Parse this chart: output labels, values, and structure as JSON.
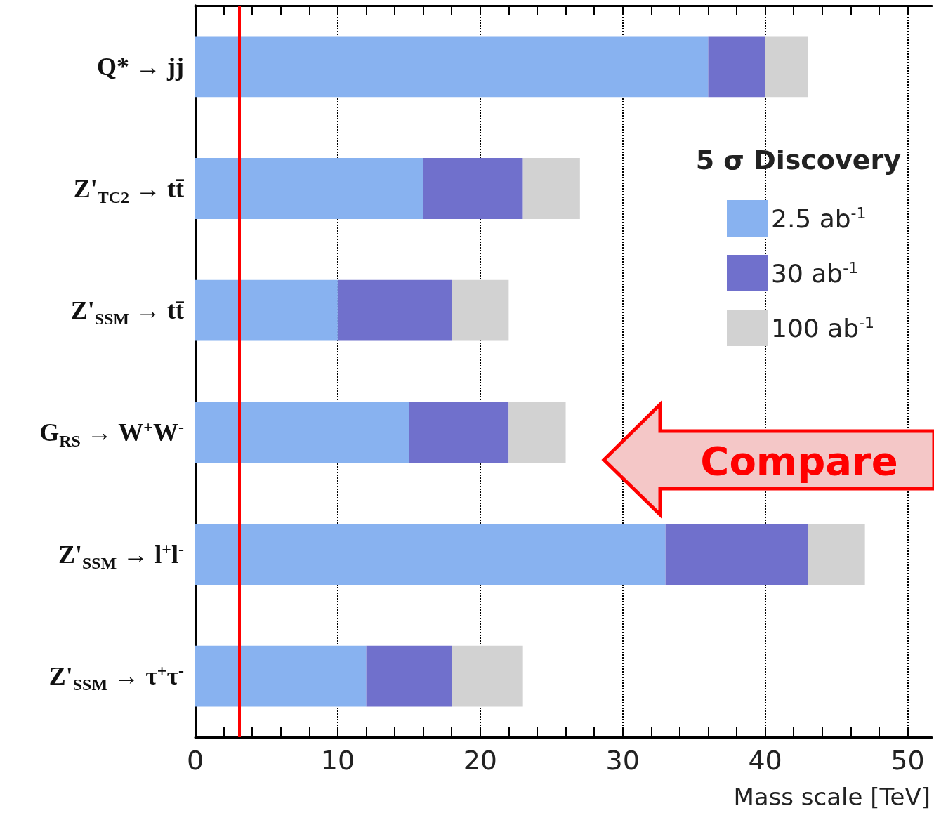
{
  "chart_data": {
    "type": "bar",
    "orientation": "horizontal",
    "stacked": true,
    "categories": [
      "Q* → jj",
      "Z'$_{TC2}$ → tt̄",
      "Z'$_{SSM}$ → tt̄",
      "G$_{RS}$ → W$^{+}$W$^{-}$",
      "Z'$_{SSM}$ → l$^{+}$l$^{-}$",
      "Z'$_{SSM}$ → τ$^{+}$τ$^{-}$"
    ],
    "series": [
      {
        "name": "2.5 ab$^{-1}$",
        "color": "#88b2f0",
        "values": [
          36,
          16,
          10,
          15,
          33,
          12
        ]
      },
      {
        "name": "30 ab$^{-1}$",
        "color": "#7070cc",
        "values": [
          4,
          7,
          8,
          7,
          10,
          6
        ]
      },
      {
        "name": "100 ab$^{-1}$",
        "color": "#d2d2d2",
        "values": [
          3,
          4,
          4,
          4,
          4,
          5
        ]
      }
    ],
    "xlabel": "Mass scale [TeV]",
    "legend_title": "5 σ Discovery",
    "legend": "top right",
    "xlim": [
      0,
      51.7
    ],
    "xticks": [
      0,
      {
        "value": 2,
        "label": null
      },
      {
        "value": 4,
        "label": null
      },
      {
        "value": 6,
        "label": null
      },
      {
        "value": 8,
        "label": null
      },
      10,
      {
        "value": 12,
        "label": null
      },
      {
        "value": 14,
        "label": null
      },
      {
        "value": 16,
        "label": null
      },
      {
        "value": 18,
        "label": null
      },
      20,
      {
        "value": 22,
        "label": null
      },
      {
        "value": 24,
        "label": null
      },
      {
        "value": 26,
        "label": null
      },
      {
        "value": 28,
        "label": null
      },
      30,
      {
        "value": 32,
        "label": null
      },
      {
        "value": 34,
        "label": null
      },
      {
        "value": 36,
        "label": null
      },
      {
        "value": 38,
        "label": null
      },
      40,
      {
        "value": 42,
        "label": null
      },
      {
        "value": 44,
        "label": null
      },
      {
        "value": 46,
        "label": null
      },
      {
        "value": 48,
        "label": null
      },
      50
    ],
    "grid": "x",
    "ref_lines": [
      {
        "axis": "x",
        "value": 3.1,
        "label": null,
        "color": "#ff0000",
        "line_style": "solid"
      }
    ],
    "annotations": [
      "Compare"
    ]
  }
}
